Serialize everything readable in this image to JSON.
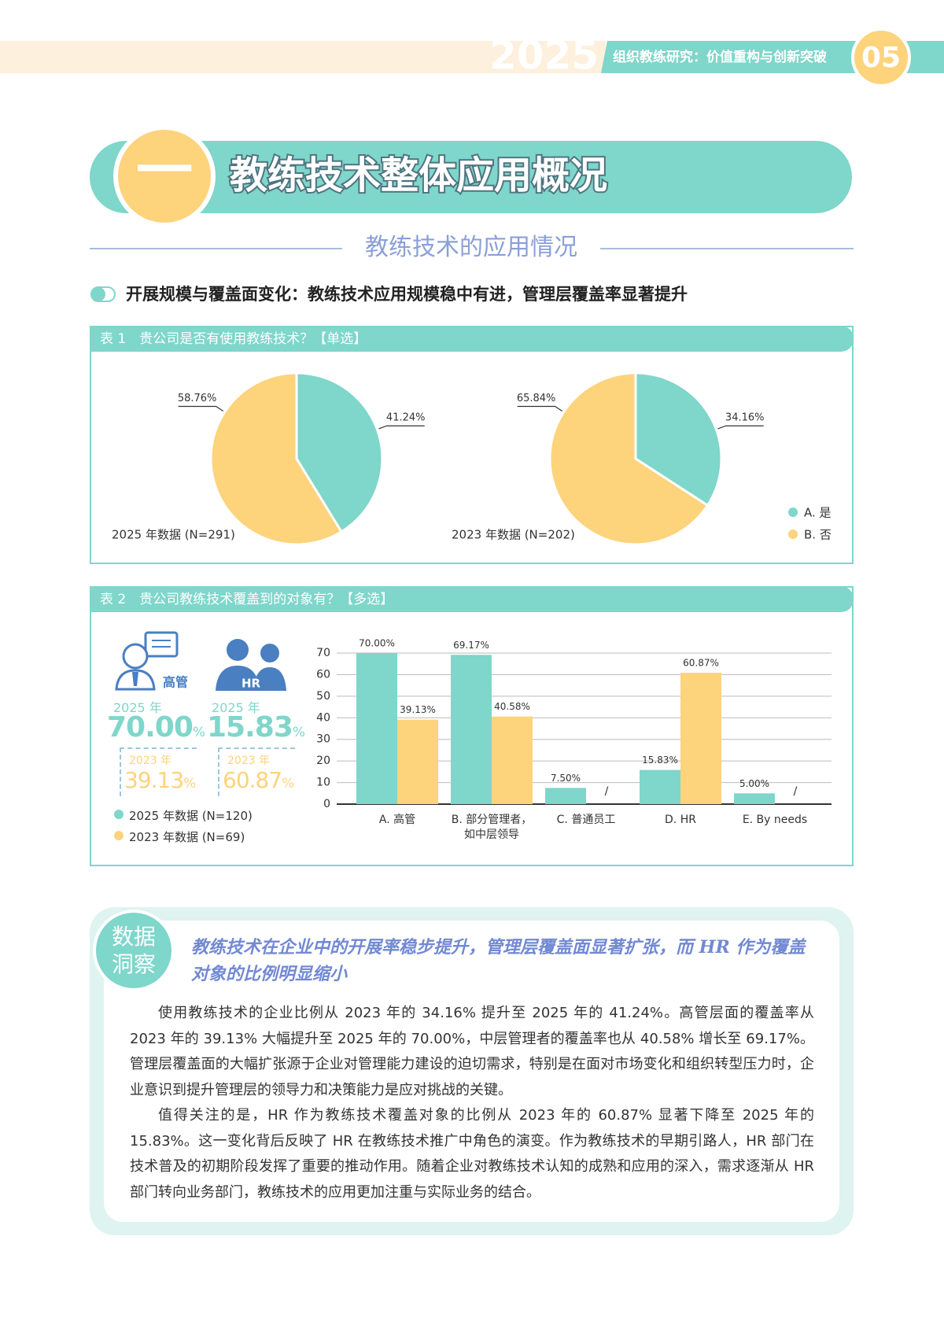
{
  "header": {
    "year": "2025",
    "title": "组织教练研究：价值重构与创新突破",
    "page": "05"
  },
  "section": {
    "number": "一",
    "title": "教练技术整体应用概况",
    "subtitle": "教练技术的应用情况",
    "heading": "开展规模与覆盖面变化：教练技术应用规模稳中有进，管理层覆盖率显著提升"
  },
  "table1": {
    "title": "表 1　贵公司是否有使用教练技术？【单选】"
  },
  "table2": {
    "title": "表 2　贵公司教练技术覆盖到的对象有？【多选】",
    "kpis": [
      {
        "label": "高管",
        "year_a": "2025 年",
        "value_a": "70.00",
        "unit_a": "%",
        "year_b": "2023 年",
        "value_b": "39.13",
        "unit_b": "%"
      },
      {
        "label": "HR",
        "year_a": "2025 年",
        "value_a": "15.83",
        "unit_a": "%",
        "year_b": "2023 年",
        "value_b": "60.87",
        "unit_b": "%"
      }
    ]
  },
  "chart_data": [
    {
      "type": "pie",
      "caption": "2025 年数据 (N=291)",
      "categories": [
        "A. 是",
        "B. 否"
      ],
      "values": [
        41.24,
        58.76
      ],
      "value_labels": [
        "41.24%",
        "58.76%"
      ],
      "colors": [
        "#7fd6cb",
        "#fdd37c"
      ]
    },
    {
      "type": "pie",
      "caption": "2023 年数据 (N=202)",
      "categories": [
        "A. 是",
        "B. 否"
      ],
      "values": [
        34.16,
        65.84
      ],
      "value_labels": [
        "34.16%",
        "65.84%"
      ],
      "colors": [
        "#7fd6cb",
        "#fdd37c"
      ],
      "legend": "bottom-right"
    },
    {
      "type": "bar",
      "categories": [
        "A. 高管",
        "B. 部分管理者，\n如中层领导",
        "C. 普通员工",
        "D. HR",
        "E. By needs"
      ],
      "series": [
        {
          "name": "2025 年数据 (N=120)",
          "color": "#7fd6cb",
          "values": [
            70.0,
            69.17,
            7.5,
            15.83,
            5.0
          ],
          "value_labels": [
            "70.00%",
            "69.17%",
            "7.50%",
            "15.83%",
            "5.00%"
          ]
        },
        {
          "name": "2023 年数据 (N=69)",
          "color": "#fdd37c",
          "values": [
            39.13,
            40.58,
            null,
            60.87,
            null
          ],
          "value_labels": [
            "39.13%",
            "40.58%",
            "/",
            "60.87%",
            "/"
          ]
        }
      ],
      "ylim": [
        0,
        70
      ],
      "yticks": [
        0,
        10,
        20,
        30,
        40,
        50,
        60,
        70
      ],
      "grid": true
    }
  ],
  "insight": {
    "badge": [
      "数据",
      "洞察"
    ],
    "title": "教练技术在企业中的开展率稳步提升，管理层覆盖面显著扩张，而 HR 作为覆盖对象的比例明显缩小",
    "paragraphs": [
      "使用教练技术的企业比例从 2023 年的 34.16% 提升至 2025 年的 41.24%。高管层面的覆盖率从 2023 年的 39.13% 大幅提升至 2025 年的 70.00%，中层管理者的覆盖率也从 40.58% 增长至 69.17%。管理层覆盖面的大幅扩张源于企业对管理能力建设的迫切需求，特别是在面对市场变化和组织转型压力时，企业意识到提升管理层的领导力和决策能力是应对挑战的关键。",
      "值得关注的是，HR 作为教练技术覆盖对象的比例从 2023 年的 60.87% 显著下降至 2025 年的 15.83%。这一变化背后反映了 HR 在教练技术推广中角色的演变。作为教练技术的早期引路人，HR 部门在技术普及的初期阶段发挥了重要的推动作用。随着企业对教练技术认知的成熟和应用的深入，需求逐渐从 HR 部门转向业务部门，教练技术的应用更加注重与实际业务的结合。"
    ]
  }
}
